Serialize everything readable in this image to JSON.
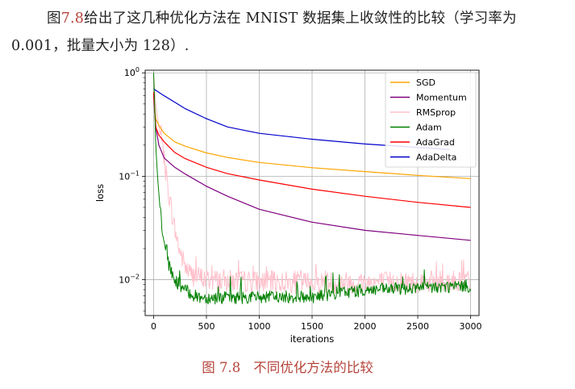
{
  "paragraph": {
    "pre": "图",
    "ref": "7.8",
    "post": "给出了这几种优化方法在 MNIST 数据集上收敛性的比较（学习率为 0.001，批量大小为 128）."
  },
  "caption": {
    "label": "图 7.8",
    "text": "不同优化方法的比较"
  },
  "chart_data": {
    "type": "line",
    "xlabel": "iterations",
    "ylabel": "loss",
    "yscale": "log",
    "xlim": [
      -80,
      3080
    ],
    "ylim": [
      0.0045,
      1.06
    ],
    "xticks": [
      0,
      500,
      1000,
      1500,
      2000,
      2500,
      3000
    ],
    "xtick_labels": [
      "0",
      "500",
      "1000",
      "1500",
      "2000",
      "2500",
      "3000"
    ],
    "yticks": [
      1,
      0.1,
      0.01
    ],
    "ytick_labels": [
      {
        "base": "10",
        "exp": "0"
      },
      {
        "base": "10",
        "exp": "−1"
      },
      {
        "base": "10",
        "exp": "−2"
      }
    ],
    "grid": true,
    "legend": "top-right",
    "series": [
      {
        "name": "SGD",
        "color": "#ffa500",
        "x": [
          0,
          20,
          50,
          100,
          200,
          300,
          500,
          700,
          1000,
          1500,
          2000,
          2500,
          3000
        ],
        "y": [
          0.62,
          0.36,
          0.31,
          0.26,
          0.215,
          0.195,
          0.168,
          0.152,
          0.136,
          0.121,
          0.111,
          0.102,
          0.095
        ]
      },
      {
        "name": "Momentum",
        "color": "#800080",
        "x": [
          0,
          20,
          50,
          100,
          200,
          300,
          500,
          700,
          1000,
          1500,
          2000,
          2500,
          3000
        ],
        "y": [
          0.62,
          0.3,
          0.2,
          0.15,
          0.122,
          0.105,
          0.08,
          0.064,
          0.048,
          0.036,
          0.03,
          0.0268,
          0.024
        ]
      },
      {
        "name": "RMSprop",
        "color": "#ffc0cb",
        "x": [
          0,
          20,
          50,
          100,
          150,
          200,
          250,
          300,
          350,
          400,
          500,
          700,
          1000,
          1500,
          2000,
          2500,
          3000
        ],
        "y": [
          0.95,
          0.5,
          0.3,
          0.14,
          0.06,
          0.03,
          0.018,
          0.013,
          0.011,
          0.0105,
          0.0098,
          0.0095,
          0.0093,
          0.0092,
          0.0092,
          0.0093,
          0.0095
        ]
      },
      {
        "name": "Adam",
        "color": "#008000",
        "x": [
          0,
          10,
          20,
          40,
          60,
          80,
          100,
          150,
          200,
          300,
          400,
          500,
          700,
          1000,
          1500,
          1800,
          2000,
          2500,
          3000
        ],
        "y": [
          1.0,
          0.5,
          0.2,
          0.09,
          0.05,
          0.03,
          0.021,
          0.013,
          0.0098,
          0.0078,
          0.0068,
          0.0066,
          0.0066,
          0.0067,
          0.0067,
          0.0075,
          0.0078,
          0.0082,
          0.0086
        ]
      },
      {
        "name": "AdaGrad",
        "color": "#ff0000",
        "x": [
          0,
          20,
          50,
          100,
          200,
          300,
          500,
          700,
          1000,
          1500,
          2000,
          2500,
          3000
        ],
        "y": [
          0.65,
          0.3,
          0.25,
          0.215,
          0.17,
          0.148,
          0.122,
          0.106,
          0.092,
          0.075,
          0.064,
          0.056,
          0.05
        ]
      },
      {
        "name": "AdaDelta",
        "color": "#0000cc",
        "x": [
          0,
          100,
          200,
          300,
          500,
          700,
          1000,
          1500,
          2000,
          2500,
          2800
        ],
        "y": [
          0.7,
          0.6,
          0.52,
          0.45,
          0.36,
          0.3,
          0.26,
          0.228,
          0.205,
          0.19,
          0.182
        ]
      }
    ]
  }
}
